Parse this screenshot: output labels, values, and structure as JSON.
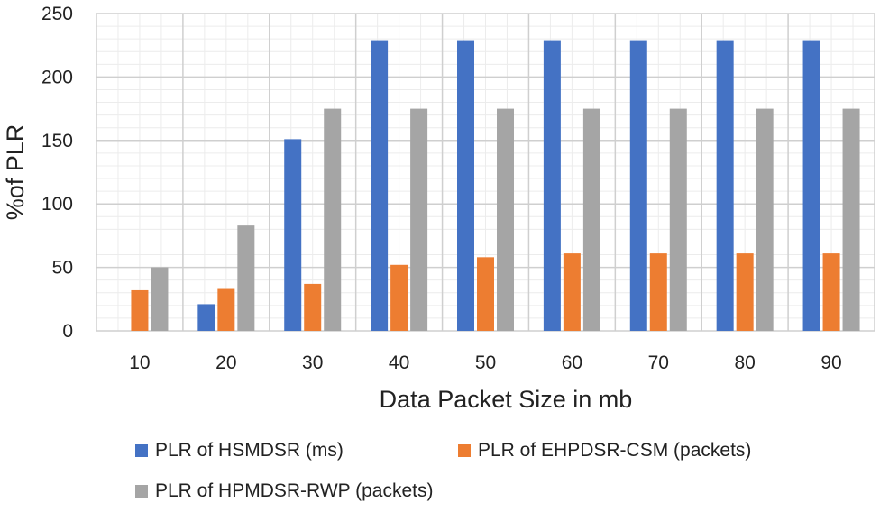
{
  "chart_data": {
    "type": "bar",
    "categories": [
      "10",
      "20",
      "30",
      "40",
      "50",
      "60",
      "70",
      "80",
      "90"
    ],
    "series": [
      {
        "name": "PLR of HSMDSR (ms)",
        "color": "#4472C4",
        "values": [
          0,
          21,
          151,
          229,
          229,
          229,
          229,
          229,
          229
        ]
      },
      {
        "name": "PLR of EHPDSR-CSM (packets)",
        "color": "#ED7D31",
        "values": [
          32,
          33,
          37,
          52,
          58,
          61,
          61,
          61,
          61
        ]
      },
      {
        "name": "PLR of HPMDSR-RWP (packets)",
        "color": "#A5A5A5",
        "values": [
          50,
          83,
          175,
          175,
          175,
          175,
          175,
          175,
          175
        ]
      }
    ],
    "xlabel": "Data Packet Size in mb",
    "ylabel": "%of PLR",
    "ylim": [
      0,
      250
    ],
    "yticks": [
      0,
      50,
      100,
      150,
      200,
      250
    ],
    "grid": true,
    "legend_position": "bottom"
  }
}
